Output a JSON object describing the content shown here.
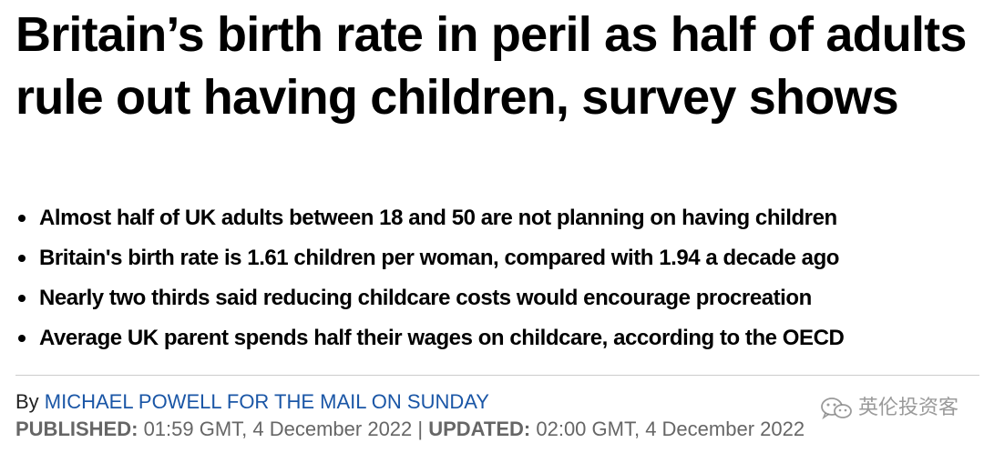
{
  "article": {
    "headline": "Britain’s birth rate in peril as half of adults rule out having children, survey shows",
    "bullets": [
      "Almost half of UK adults between 18 and 50 are not planning on having children",
      "Britain's birth rate is 1.61 children per woman, compared with 1.94 a decade ago",
      "Nearly two thirds said reducing childcare costs would encourage procreation",
      "Average UK parent spends half their wages on childcare, according to the OECD"
    ],
    "byline": {
      "prefix": "By ",
      "author": "MICHAEL POWELL FOR THE MAIL ON SUNDAY"
    },
    "dates": {
      "published_label": "PUBLISHED:",
      "published_value": " 01:59 GMT, 4 December 2022 | ",
      "updated_label": "UPDATED:",
      "updated_value": " 02:00 GMT, 4 December 2022"
    }
  },
  "watermark": {
    "icon": "wechat-icon",
    "text": "英伦投资客"
  },
  "colors": {
    "author_link": "#1a56a6",
    "dateline": "#666666",
    "divider": "#cccccc"
  }
}
